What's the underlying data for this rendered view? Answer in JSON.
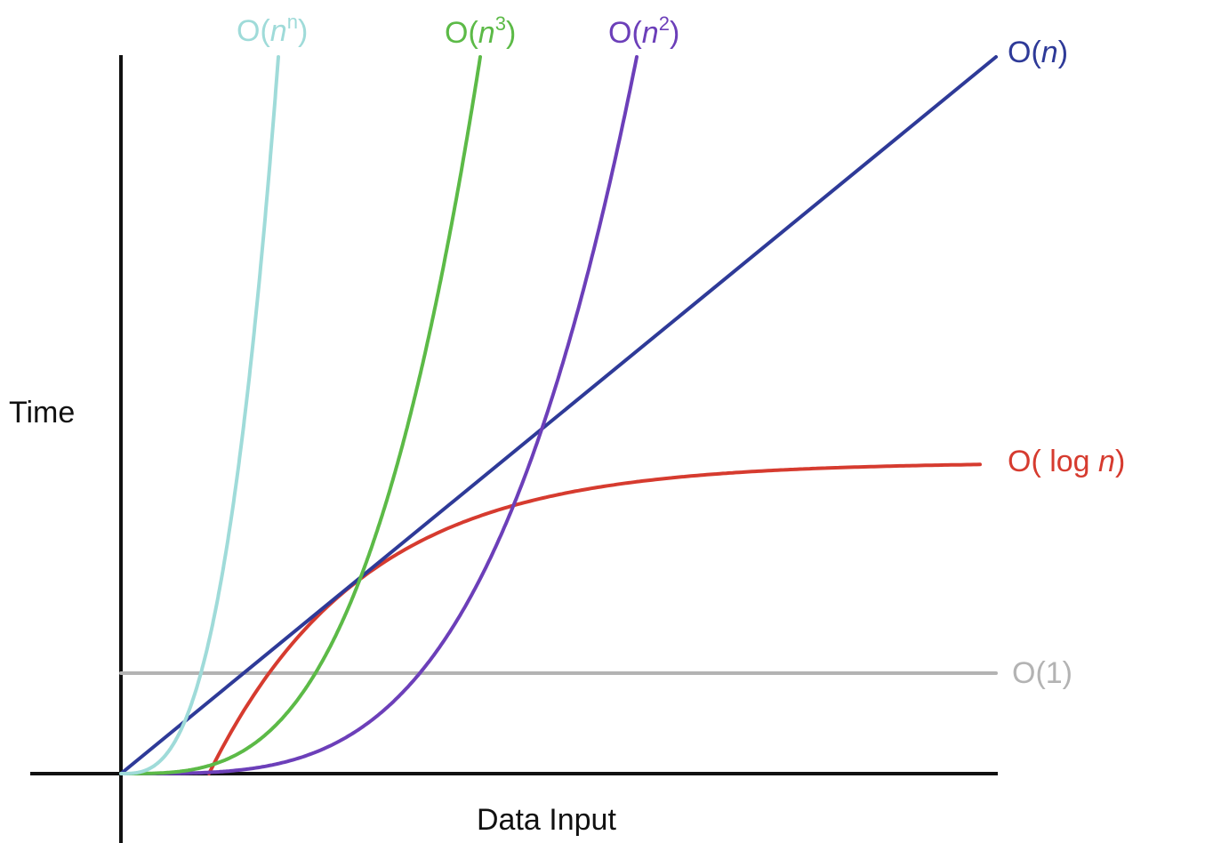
{
  "chart_data": {
    "type": "line",
    "title": "",
    "xlabel": "Data Input",
    "ylabel": "Time",
    "grid": false,
    "legend": "inline labels at curve ends",
    "series": [
      {
        "key": "nn",
        "label_text": "O(n^n)",
        "color": "#9fdbd9"
      },
      {
        "key": "n3",
        "label_text": "O(n^3)",
        "color": "#5cba47"
      },
      {
        "key": "n2",
        "label_text": "O(n^2)",
        "color": "#6c3fb9"
      },
      {
        "key": "n",
        "label_text": "O(n)",
        "color": "#2e3a98"
      },
      {
        "key": "log",
        "label_text": "O( log n)",
        "color": "#d63b2f"
      },
      {
        "key": "c",
        "label_text": "O(1)",
        "color": "#b3b3b3"
      }
    ]
  },
  "labels": {
    "nn": {
      "prefix": "O(",
      "var": "n",
      "sup": "n",
      "suffix": ")"
    },
    "n3": {
      "prefix": "O(",
      "var": "n",
      "sup": "3",
      "suffix": ")"
    },
    "n2": {
      "prefix": "O(",
      "var": "n",
      "sup": "2",
      "suffix": ")"
    },
    "n": {
      "prefix": "O(",
      "var": "n",
      "suffix": ")"
    },
    "log": {
      "prefix": "O( log ",
      "var": "n",
      "suffix": ")"
    },
    "c": {
      "prefix": "O(1)"
    }
  }
}
